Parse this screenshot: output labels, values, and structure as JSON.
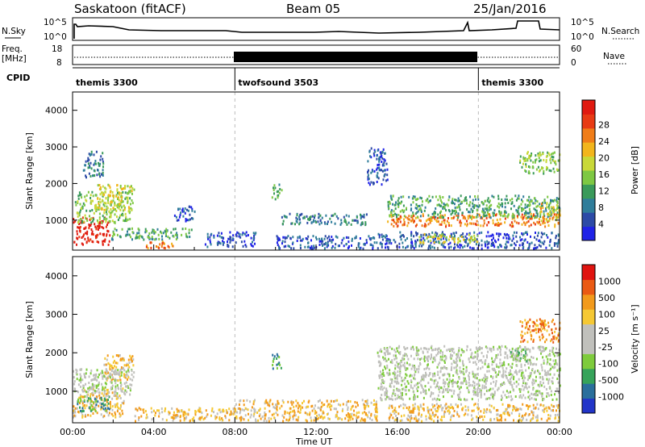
{
  "header": {
    "station": "Saskatoon (fitACF)",
    "beam": "Beam 05",
    "date": "25/Jan/2016"
  },
  "noise_panel": {
    "left_label": "N.Sky",
    "right_label": "N.Search",
    "left_ticks": [
      "10^5",
      "10^0"
    ],
    "right_ticks": [
      "10^5",
      "10^0"
    ]
  },
  "freq_panel": {
    "left_label_1": "Freq.",
    "left_label_2": "[MHz]",
    "left_ticks": [
      "18",
      "8"
    ],
    "right_label": "Nave",
    "right_ticks": [
      "60",
      "0"
    ]
  },
  "cpid_panel": {
    "label": "CPID",
    "segments": [
      {
        "name": "themis 3300",
        "start_hr": 0,
        "end_hr": 8
      },
      {
        "name": "twofsound 3503",
        "start_hr": 8,
        "end_hr": 20
      },
      {
        "name": "themis 3300",
        "start_hr": 20,
        "end_hr": 24
      }
    ]
  },
  "chart_data": [
    {
      "type": "heatmap",
      "title": "Power",
      "ylabel": "Slant Range [km]",
      "ylim": [
        180,
        4500
      ],
      "yticks": [
        "1000",
        "2000",
        "3000",
        "4000"
      ],
      "xlim": [
        0,
        24
      ],
      "colorbar": {
        "label": "Power [dB]",
        "ticks": [
          "4",
          "8",
          "12",
          "16",
          "20",
          "24",
          "28"
        ],
        "colors": [
          "#1f22e6",
          "#2c4aa6",
          "#2f7d9a",
          "#3a9a5a",
          "#7ec843",
          "#c8d838",
          "#f2b51c",
          "#f07d18",
          "#e83b14",
          "#e01a10"
        ]
      },
      "regions": [
        {
          "t0": 0.0,
          "t1": 1.8,
          "r0": 350,
          "r1": 1100,
          "level": 9
        },
        {
          "t0": 0.1,
          "t1": 2.8,
          "r0": 950,
          "r1": 1800,
          "level": 4
        },
        {
          "t0": 1.2,
          "t1": 3.0,
          "r0": 1300,
          "r1": 2000,
          "level": 5
        },
        {
          "t0": 0.5,
          "t1": 1.5,
          "r0": 2200,
          "r1": 2900,
          "level": 2
        },
        {
          "t0": 1.8,
          "t1": 6.0,
          "r0": 500,
          "r1": 800,
          "level": 3
        },
        {
          "t0": 3.5,
          "t1": 5.0,
          "r0": 250,
          "r1": 450,
          "level": 7
        },
        {
          "t0": 5.0,
          "t1": 6.0,
          "r0": 1000,
          "r1": 1400,
          "level": 1
        },
        {
          "t0": 6.5,
          "t1": 9.0,
          "r0": 300,
          "r1": 700,
          "level": 1
        },
        {
          "t0": 9.8,
          "t1": 10.3,
          "r0": 1600,
          "r1": 2000,
          "level": 3
        },
        {
          "t0": 10.2,
          "t1": 14.5,
          "r0": 900,
          "r1": 1200,
          "level": 2
        },
        {
          "t0": 10.0,
          "t1": 15.0,
          "r0": 250,
          "r1": 600,
          "level": 1
        },
        {
          "t0": 15.5,
          "t1": 24.0,
          "r0": 850,
          "r1": 1200,
          "level": 7
        },
        {
          "t0": 15.5,
          "t1": 24.0,
          "r0": 1100,
          "r1": 1700,
          "level": 3
        },
        {
          "t0": 15.0,
          "t1": 24.0,
          "r0": 250,
          "r1": 700,
          "level": 1
        },
        {
          "t0": 17.0,
          "t1": 20.0,
          "r0": 400,
          "r1": 650,
          "level": 5
        },
        {
          "t0": 14.5,
          "t1": 15.5,
          "r0": 2000,
          "r1": 3000,
          "level": 1
        },
        {
          "t0": 22.0,
          "t1": 24.0,
          "r0": 2300,
          "r1": 2900,
          "level": 4
        },
        {
          "t0": 23.0,
          "t1": 24.0,
          "r0": 1000,
          "r1": 1500,
          "level": 6
        }
      ]
    },
    {
      "type": "heatmap",
      "title": "Velocity",
      "ylabel": "Slant Range [km]",
      "ylim": [
        180,
        4500
      ],
      "yticks": [
        "1000",
        "2000",
        "3000",
        "4000"
      ],
      "xlim": [
        0,
        24
      ],
      "xlabel": "Time UT",
      "xticks": [
        "00:00",
        "04:00",
        "08:00",
        "12:00",
        "16:00",
        "20:00",
        "00:00"
      ],
      "colorbar": {
        "label": "Velocity [m s⁻¹]",
        "ticks": [
          "1000",
          "500",
          "100",
          "25",
          "-25",
          "-100",
          "-500",
          "-1000"
        ],
        "colors": [
          "#2235c8",
          "#2a6f9c",
          "#36a35a",
          "#7ecb3c",
          "#c0c0bc",
          "#c0c0bc",
          "#f5c834",
          "#f29a1c",
          "#ea5a14",
          "#e01410"
        ]
      },
      "regions": [
        {
          "t0": 0.0,
          "t1": 2.5,
          "r0": 350,
          "r1": 1100,
          "level": 6
        },
        {
          "t0": 0.2,
          "t1": 1.8,
          "r0": 500,
          "r1": 900,
          "level": 2
        },
        {
          "t0": 1.5,
          "t1": 3.0,
          "r0": 1300,
          "r1": 2000,
          "level": 6
        },
        {
          "t0": 0.0,
          "t1": 3.0,
          "r0": 900,
          "r1": 1600,
          "level": 4
        },
        {
          "t0": 3.0,
          "t1": 8.0,
          "r0": 250,
          "r1": 600,
          "level": 6
        },
        {
          "t0": 9.8,
          "t1": 10.3,
          "r0": 1600,
          "r1": 2000,
          "level": 2
        },
        {
          "t0": 8.0,
          "t1": 15.0,
          "r0": 250,
          "r1": 800,
          "level": 6
        },
        {
          "t0": 15.0,
          "t1": 24.0,
          "r0": 800,
          "r1": 1600,
          "level": 4
        },
        {
          "t0": 15.0,
          "t1": 24.0,
          "r0": 1600,
          "r1": 2200,
          "level": 4
        },
        {
          "t0": 15.5,
          "t1": 24.0,
          "r0": 250,
          "r1": 700,
          "level": 6
        },
        {
          "t0": 22.0,
          "t1": 24.0,
          "r0": 2300,
          "r1": 2900,
          "level": 7
        },
        {
          "t0": 21.5,
          "t1": 22.5,
          "r0": 1800,
          "r1": 2200,
          "level": 3
        }
      ]
    }
  ]
}
